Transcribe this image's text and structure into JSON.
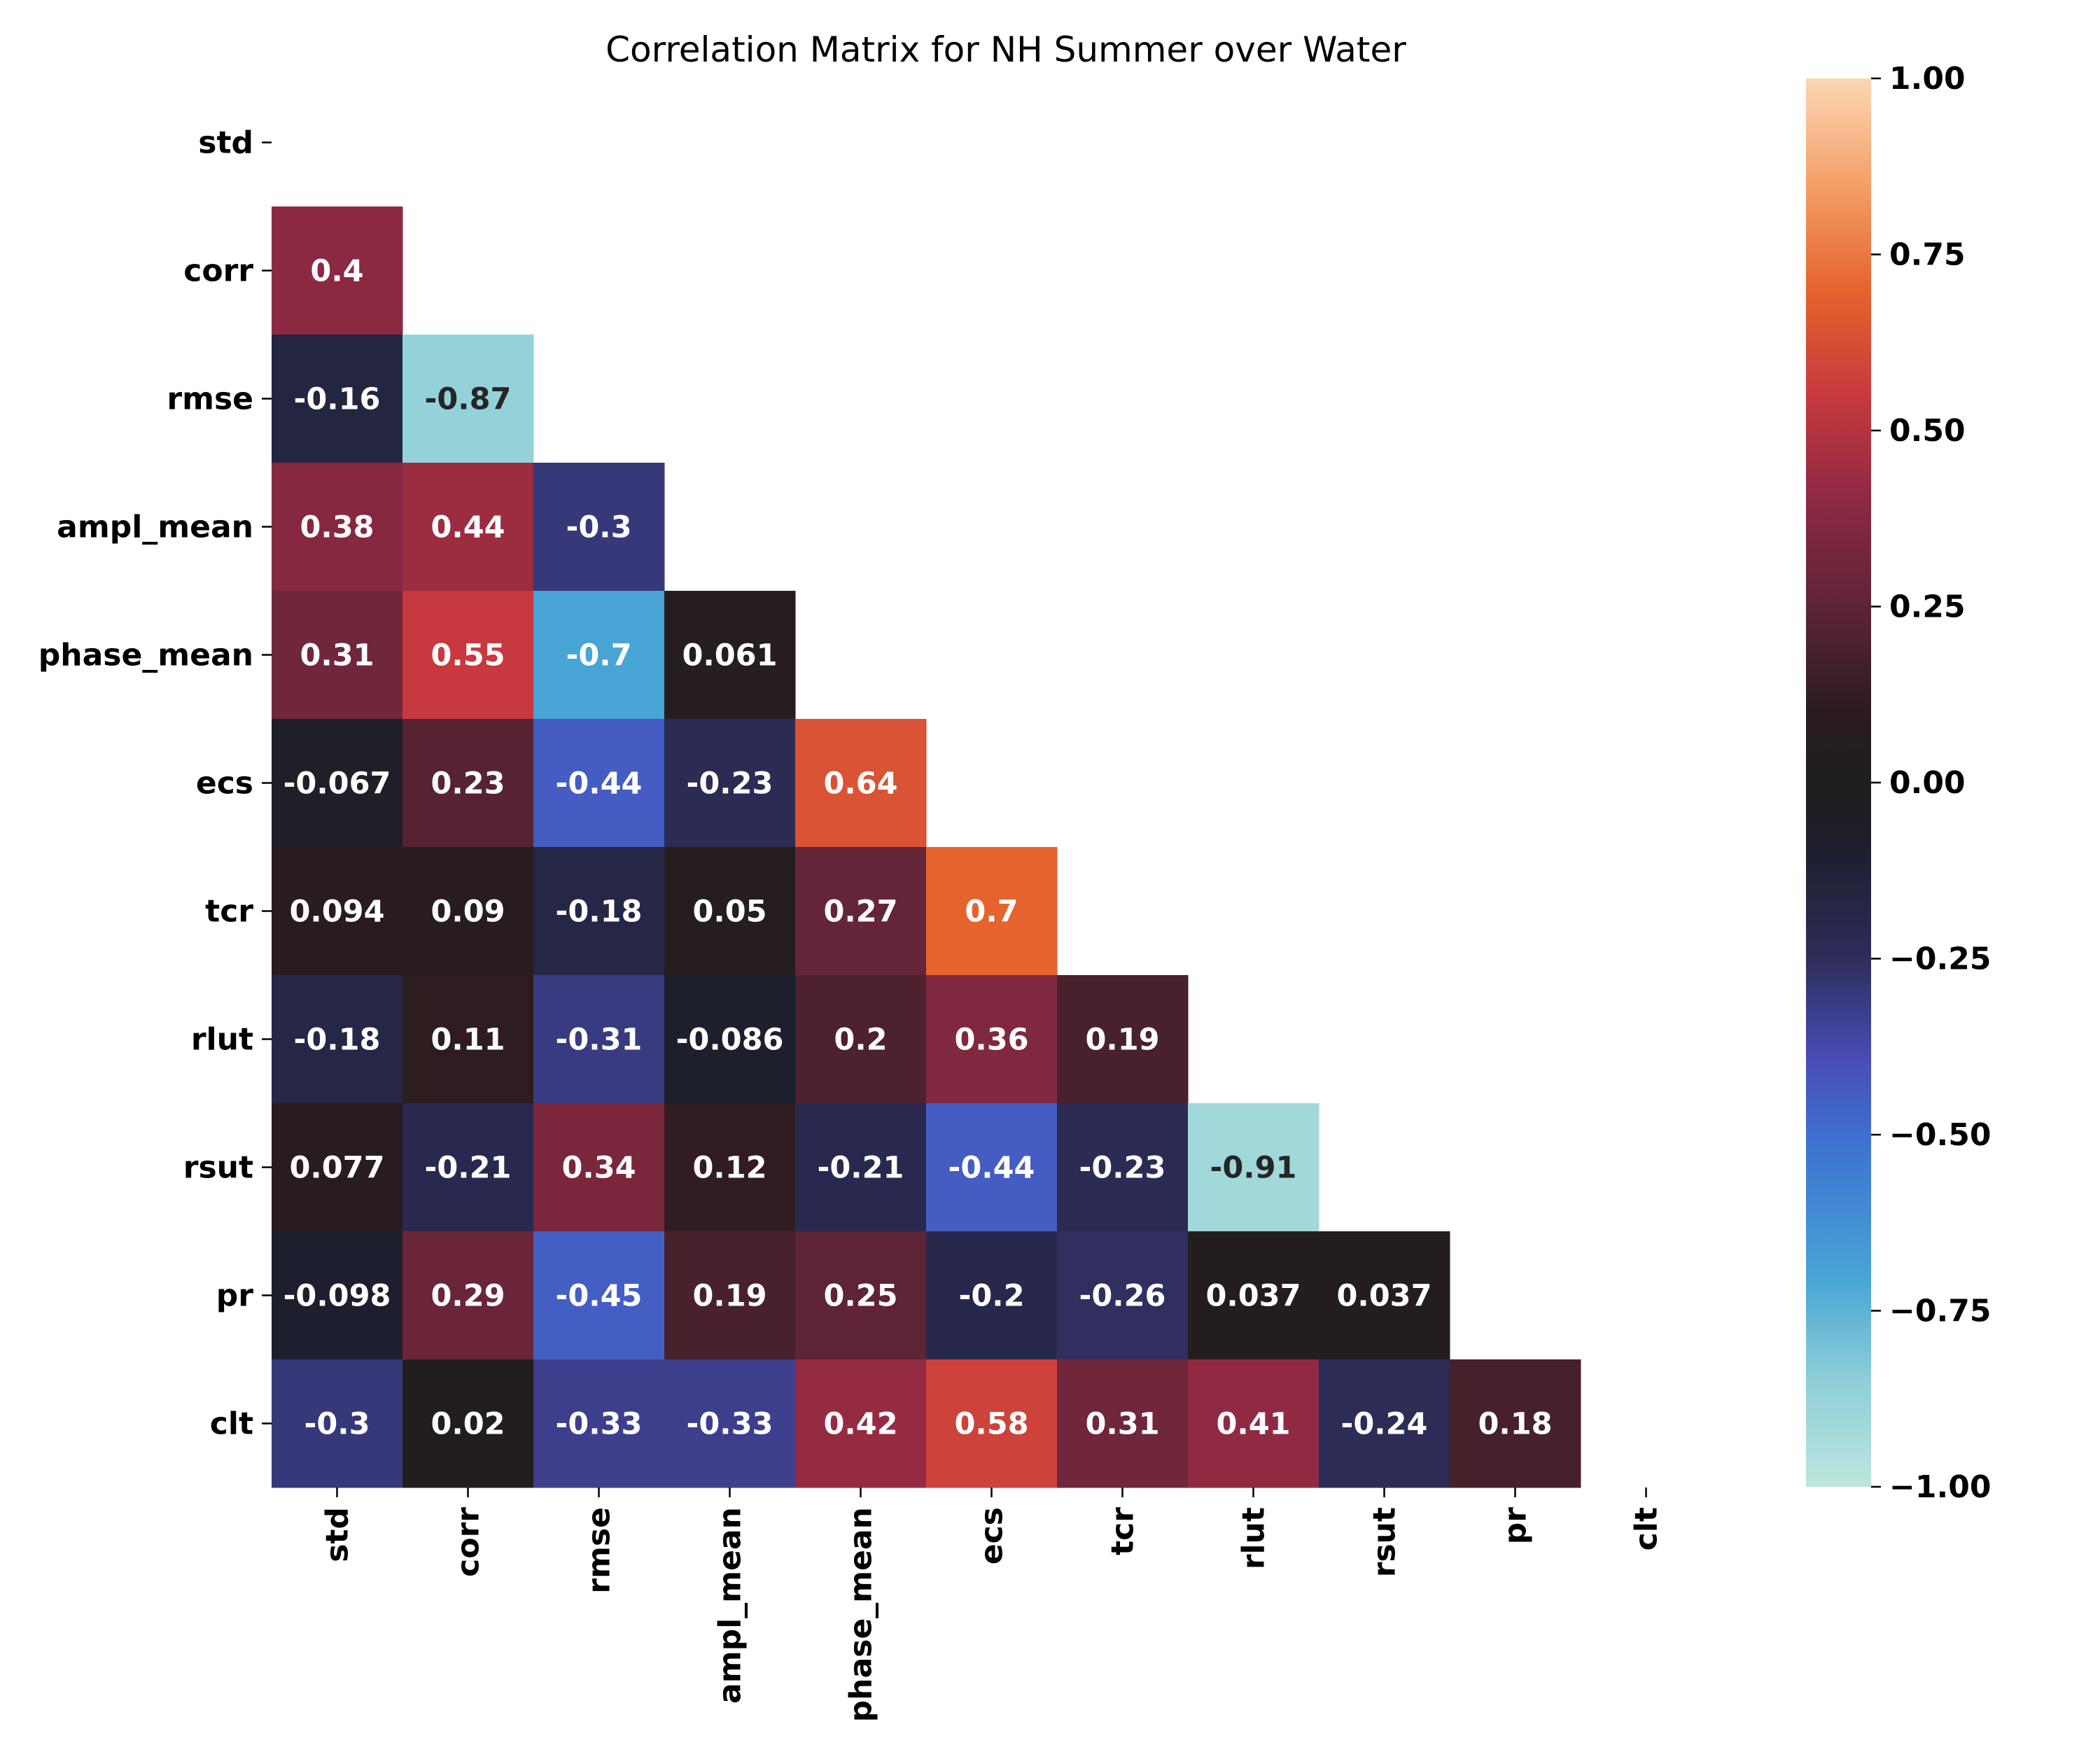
{
  "chart_data": {
    "type": "heatmap",
    "title": "Correlation Matrix for NH Summer over Water",
    "variables": [
      "std",
      "corr",
      "rmse",
      "ampl_mean",
      "phase_mean",
      "ecs",
      "tcr",
      "rlut",
      "rsut",
      "pr",
      "clt"
    ],
    "mask": "upper-triangle-and-diagonal",
    "rows": [
      {
        "label": "std",
        "values": []
      },
      {
        "label": "corr",
        "values": [
          0.4
        ]
      },
      {
        "label": "rmse",
        "values": [
          -0.16,
          -0.87
        ]
      },
      {
        "label": "ampl_mean",
        "values": [
          0.38,
          0.44,
          -0.3
        ]
      },
      {
        "label": "phase_mean",
        "values": [
          0.31,
          0.55,
          -0.7,
          0.061
        ]
      },
      {
        "label": "ecs",
        "values": [
          -0.067,
          0.23,
          -0.44,
          -0.23,
          0.64
        ]
      },
      {
        "label": "tcr",
        "values": [
          0.094,
          0.09,
          -0.18,
          0.05,
          0.27,
          0.7
        ]
      },
      {
        "label": "rlut",
        "values": [
          -0.18,
          0.11,
          -0.31,
          -0.086,
          0.2,
          0.36,
          0.19
        ]
      },
      {
        "label": "rsut",
        "values": [
          0.077,
          -0.21,
          0.34,
          0.12,
          -0.21,
          -0.44,
          -0.23,
          -0.91
        ]
      },
      {
        "label": "pr",
        "values": [
          -0.098,
          0.29,
          -0.45,
          0.19,
          0.25,
          -0.2,
          -0.26,
          0.037,
          0.037
        ]
      },
      {
        "label": "clt",
        "values": [
          -0.3,
          0.02,
          -0.33,
          -0.33,
          0.42,
          0.58,
          0.31,
          0.41,
          -0.24,
          0.18
        ]
      }
    ],
    "colorbar": {
      "range": [
        -1,
        1
      ],
      "ticks": [
        "1.00",
        "0.75",
        "0.50",
        "0.25",
        "0.00",
        "−0.25",
        "−0.50",
        "−0.75",
        "−1.00"
      ],
      "tick_values": [
        1,
        0.75,
        0.5,
        0.25,
        0,
        -0.25,
        -0.5,
        -0.75,
        -1
      ],
      "colormap": "icefire",
      "color_stops": [
        {
          "v": -1.0,
          "c": "#bde6dd"
        },
        {
          "v": -0.85,
          "c": "#8ecfd8"
        },
        {
          "v": -0.7,
          "c": "#47a4d4"
        },
        {
          "v": -0.5,
          "c": "#3d6fd0"
        },
        {
          "v": -0.4,
          "c": "#4a4fb8"
        },
        {
          "v": -0.25,
          "c": "#2e2d5a"
        },
        {
          "v": -0.1,
          "c": "#1d1f2f"
        },
        {
          "v": 0.0,
          "c": "#201e1e"
        },
        {
          "v": 0.1,
          "c": "#2a1c1e"
        },
        {
          "v": 0.25,
          "c": "#5e2436"
        },
        {
          "v": 0.4,
          "c": "#8c2942"
        },
        {
          "v": 0.55,
          "c": "#c7393f"
        },
        {
          "v": 0.7,
          "c": "#e5642d"
        },
        {
          "v": 0.85,
          "c": "#f3a069"
        },
        {
          "v": 1.0,
          "c": "#fcd6b4"
        }
      ]
    }
  }
}
